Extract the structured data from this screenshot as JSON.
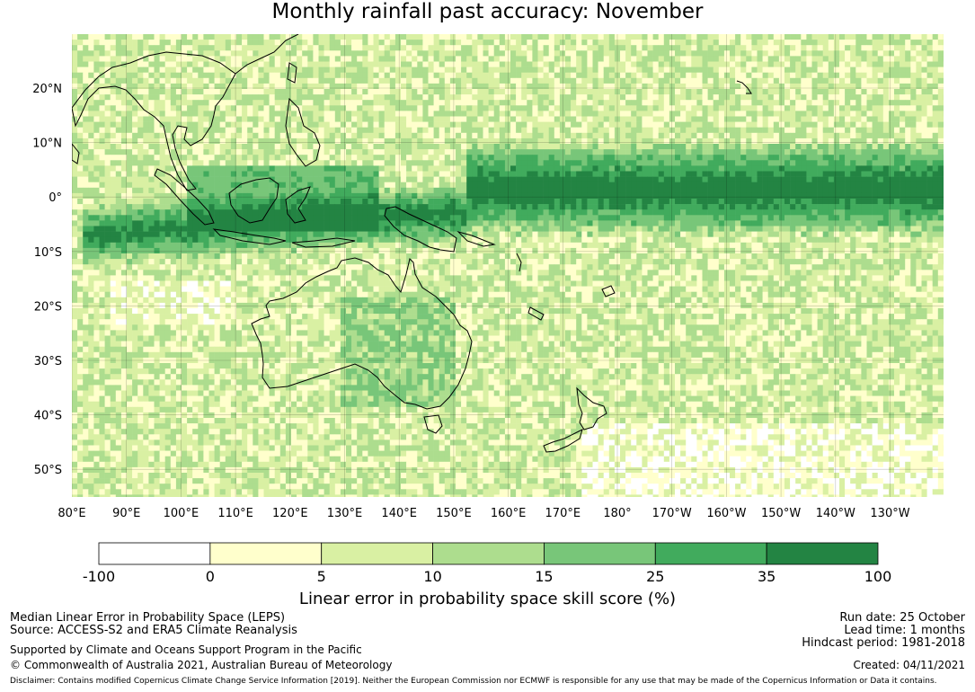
{
  "title": "Monthly rainfall past accuracy: November",
  "map": {
    "lat_ticks": [
      "20°N",
      "10°N",
      "0°",
      "10°S",
      "20°S",
      "30°S",
      "40°S",
      "50°S"
    ],
    "lon_ticks": [
      "80°E",
      "90°E",
      "100°E",
      "110°E",
      "120°E",
      "130°E",
      "140°E",
      "150°E",
      "160°E",
      "170°E",
      "180°",
      "170°W",
      "160°W",
      "150°W",
      "140°W",
      "130°W"
    ]
  },
  "colorbar": {
    "tick_labels": [
      "-100",
      "0",
      "5",
      "10",
      "15",
      "25",
      "35",
      "100"
    ],
    "colors": [
      "#ffffff",
      "#ffffcc",
      "#d9f0a3",
      "#addd8e",
      "#78c679",
      "#41ab5d",
      "#238443"
    ],
    "label": "Linear error in probability space skill score (%)"
  },
  "footer": {
    "line1": "Median Linear Error in Probability Space (LEPS)",
    "line2": "Source: ACCESS-S2 and ERA5 Climate Reanalysis",
    "line3": "Supported by Climate and Oceans Support Program in the Pacific",
    "line4": "© Commonwealth of Australia 2021, Australian Bureau of Meteorology",
    "run_date": "Run date: 25 October",
    "lead_time": "Lead time: 1 months",
    "hindcast": "Hindcast period: 1981-2018",
    "created": "Created: 04/11/2021",
    "disclaimer": "Disclaimer: Contains modified Copernicus Climate Change Service Information [2019]. Neither the European Commission nor ECMWF is responsible for any use that may be made of the Copernicus Information or Data it contains."
  }
}
